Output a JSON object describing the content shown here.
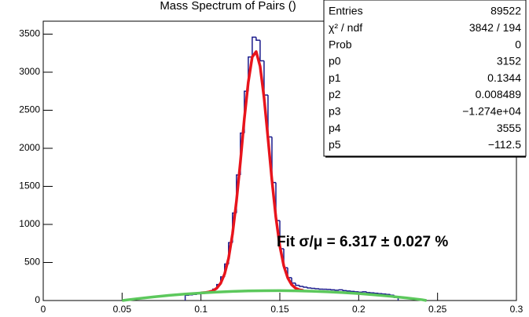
{
  "chart_data": {
    "type": "histogram",
    "title": "Mass Spectrum of Pairs ()",
    "bins": [
      0.09,
      0.0925,
      0.095,
      0.0975,
      0.1,
      0.1025,
      0.105,
      0.1075,
      0.11,
      0.1125,
      0.115,
      0.1175,
      0.12,
      0.1225,
      0.125,
      0.1275,
      0.13,
      0.1325,
      0.135,
      0.1375,
      0.14,
      0.1425,
      0.145,
      0.1475,
      0.15,
      0.1525,
      0.155,
      0.1575,
      0.16,
      0.1625,
      0.165,
      0.1675,
      0.17,
      0.1725,
      0.175,
      0.1775,
      0.18,
      0.1825,
      0.185,
      0.1875,
      0.19,
      0.1925,
      0.195,
      0.1975,
      0.2,
      0.2025,
      0.205,
      0.2075,
      0.21,
      0.2125,
      0.215,
      0.2175,
      0.22,
      0.2225,
      0.225
    ],
    "values": [
      70,
      75,
      80,
      88,
      95,
      105,
      120,
      150,
      210,
      310,
      480,
      760,
      1150,
      1650,
      2200,
      2750,
      3200,
      3460,
      3420,
      3150,
      2700,
      2150,
      1550,
      1050,
      680,
      430,
      300,
      230,
      200,
      185,
      175,
      165,
      160,
      155,
      150,
      148,
      145,
      140,
      135,
      140,
      130,
      125,
      120,
      115,
      110,
      115,
      105,
      100,
      95,
      90,
      85,
      80,
      70,
      40
    ],
    "color": "#1a1a8c",
    "fits": [
      {
        "type": "line",
        "color": "#e8141c",
        "x": [
          0.1,
          0.1025,
          0.105,
          0.1075,
          0.11,
          0.1125,
          0.115,
          0.1175,
          0.12,
          0.1225,
          0.125,
          0.1275,
          0.13,
          0.1325,
          0.135,
          0.1375,
          0.14,
          0.1425,
          0.145,
          0.1475,
          0.15,
          0.1525,
          0.155,
          0.1575,
          0.16,
          0.1625,
          0.165
        ],
        "values": [
          100,
          104,
          113,
          127,
          162,
          227,
          350,
          553,
          875,
          1306,
          1820,
          2390,
          2868,
          3200,
          3270,
          3078,
          2666,
          2131,
          1579,
          1092,
          715,
          456,
          298,
          208,
          162,
          141,
          132
        ]
      },
      {
        "type": "line",
        "color": "#5cc85c",
        "x": [
          0.05,
          0.06,
          0.07,
          0.08,
          0.09,
          0.1,
          0.11,
          0.12,
          0.13,
          0.14,
          0.15,
          0.16,
          0.17,
          0.18,
          0.19,
          0.2,
          0.21,
          0.22,
          0.23,
          0.24,
          0.243
        ],
        "values": [
          0,
          25,
          48,
          68,
          85,
          99,
          111,
          120,
          126,
          129,
          130,
          128,
          123,
          115,
          105,
          91,
          75,
          56,
          35,
          11,
          0
        ]
      }
    ],
    "xlim": [
      0,
      0.3
    ],
    "xticks": [
      0,
      0.05,
      0.1,
      0.15,
      0.2,
      0.25,
      0.3
    ],
    "ylim": [
      0,
      3670
    ],
    "yticks": [
      0,
      500,
      1000,
      1500,
      2000,
      2500,
      3000,
      3500
    ],
    "annotation": "Fit  σ/μ = 6.317 ± 0.027 %",
    "stats": [
      [
        "Entries",
        "89522"
      ],
      [
        "χ² / ndf",
        "3842 / 194"
      ],
      [
        "Prob",
        "0"
      ],
      [
        "p0",
        "3152"
      ],
      [
        "p1",
        "0.1344"
      ],
      [
        "p2",
        "0.008489"
      ],
      [
        "p3",
        "−1.274e+04"
      ],
      [
        "p4",
        "3555"
      ],
      [
        "p5",
        "−112.5"
      ]
    ]
  }
}
